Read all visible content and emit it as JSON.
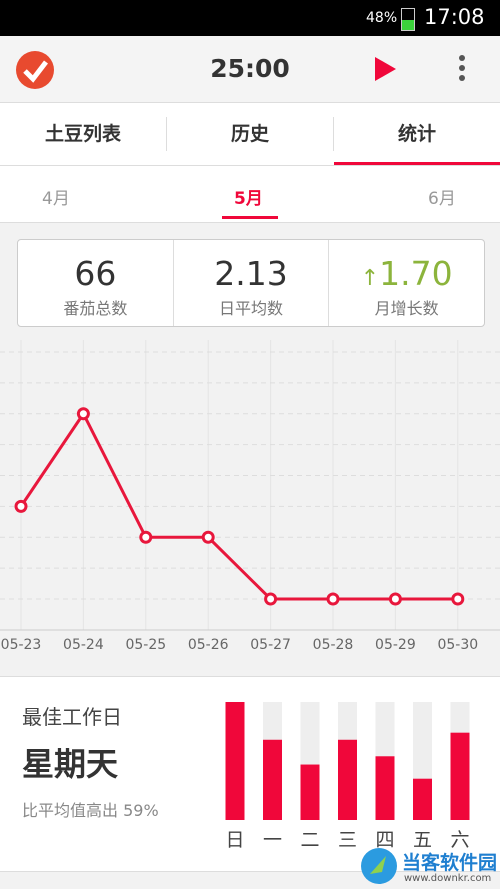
{
  "status_bar": {
    "battery": "48%",
    "time": "17:08"
  },
  "header": {
    "timer": "25:00"
  },
  "tabs": [
    "土豆列表",
    "历史",
    "统计"
  ],
  "months": [
    "4月",
    "5月",
    "6月"
  ],
  "stats": [
    {
      "value": "66",
      "label": "番茄总数"
    },
    {
      "value": "2.13",
      "label": "日平均数"
    },
    {
      "value": "1.70",
      "label": "月增长数"
    }
  ],
  "line_chart": {
    "type": "line",
    "categories": [
      "05-23",
      "05-24",
      "05-25",
      "05-26",
      "05-27",
      "05-28",
      "05-29",
      "05-30"
    ],
    "values": [
      3,
      6,
      2,
      2,
      0,
      0,
      0,
      0
    ],
    "color": "#e8173c",
    "ylim": [
      0,
      8
    ],
    "yticks": [
      0,
      1,
      2,
      3,
      4,
      5,
      6,
      7,
      8
    ],
    "grid": true
  },
  "best_day": {
    "title": "最佳工作日",
    "day": "星期天",
    "note": "比平均值高出 59%",
    "chart": {
      "type": "bar",
      "categories": [
        "日",
        "一",
        "二",
        "三",
        "四",
        "五",
        "六"
      ],
      "values": [
        100,
        68,
        47,
        68,
        54,
        35,
        74
      ],
      "color": "#f0073a",
      "ylim": [
        0,
        100
      ]
    }
  },
  "watermark": {
    "name": "当客软件园",
    "url": "www.downkr.com"
  }
}
